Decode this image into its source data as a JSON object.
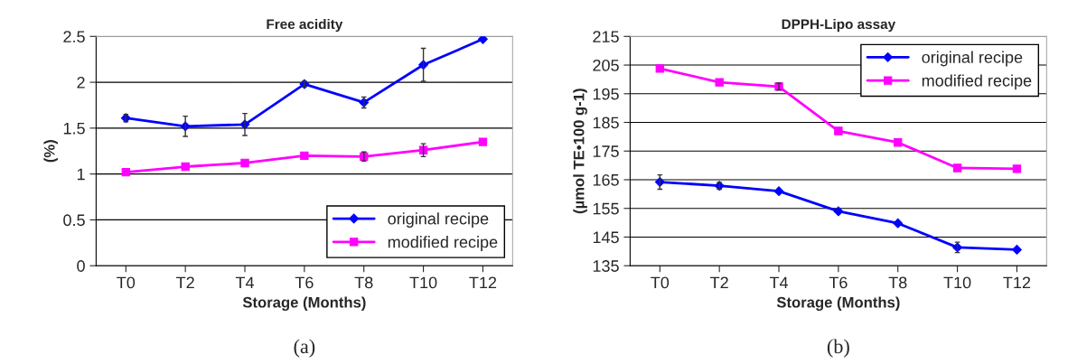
{
  "chart_data": [
    {
      "type": "line",
      "title": "Free acidity",
      "xlabel": "Storage (Months)",
      "ylabel": "(%)",
      "categories": [
        "T0",
        "T2",
        "T4",
        "T6",
        "T8",
        "T10",
        "T12"
      ],
      "series": [
        {
          "name": "original recipe",
          "color": "#0000ff",
          "marker": "diamond",
          "values": [
            1.61,
            1.52,
            1.54,
            1.98,
            1.78,
            2.19,
            2.47
          ],
          "errors": [
            0.04,
            0.11,
            0.12,
            0.03,
            0.06,
            0.18,
            null
          ]
        },
        {
          "name": "modified recipe",
          "color": "#ff00ff",
          "marker": "square",
          "values": [
            1.02,
            1.08,
            1.12,
            1.2,
            1.19,
            1.26,
            1.35
          ],
          "errors": [
            null,
            null,
            null,
            null,
            0.05,
            0.07,
            null
          ]
        }
      ],
      "ylim": [
        0,
        2.5
      ],
      "yticks": [
        0,
        0.5,
        1,
        1.5,
        2,
        2.5
      ],
      "grid": "y",
      "legend": "bottom right",
      "annotations": [
        "(a)"
      ]
    },
    {
      "type": "line",
      "title": "DPPH-Lipo assay",
      "xlabel": "Storage (Months)",
      "ylabel": "(µmol TE•100 g-1)",
      "categories": [
        "T0",
        "T2",
        "T4",
        "T6",
        "T8",
        "T10",
        "T12"
      ],
      "series": [
        {
          "name": "original recipe",
          "color": "#0000ff",
          "marker": "diamond",
          "values": [
            164.2,
            162.9,
            161,
            154,
            149.8,
            141.4,
            140.6
          ],
          "errors": [
            2.5,
            1.2,
            null,
            null,
            null,
            1.8,
            null
          ]
        },
        {
          "name": "modified recipe",
          "color": "#ff00ff",
          "marker": "square",
          "values": [
            203.8,
            199,
            197.5,
            182,
            178,
            169.1,
            168.8
          ],
          "errors": [
            null,
            null,
            1.2,
            null,
            null,
            null,
            null
          ]
        }
      ],
      "ylim": [
        135,
        215
      ],
      "yticks": [
        135,
        145,
        155,
        165,
        175,
        185,
        195,
        205,
        215
      ],
      "grid": "y",
      "legend": "top right",
      "annotations": [
        "(b)"
      ]
    }
  ]
}
